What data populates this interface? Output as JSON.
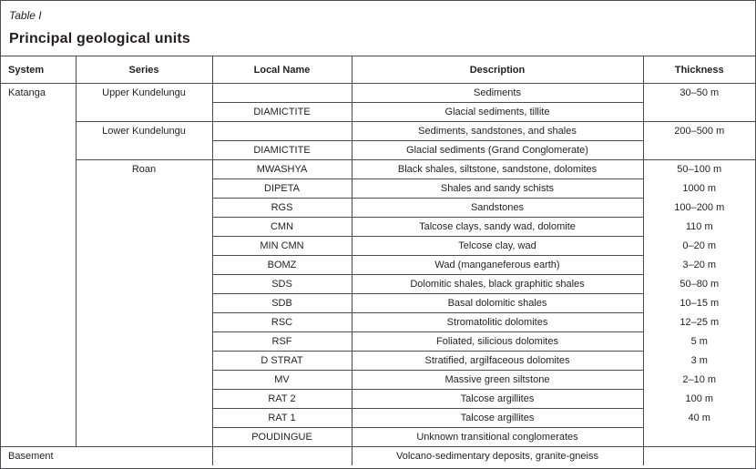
{
  "page": {
    "table_label": "Table I",
    "heading": "Principal geological units"
  },
  "colors": {
    "background": "#ffffff",
    "text": "#231f20",
    "border": "#4d4d4f"
  },
  "table": {
    "columns": [
      "System",
      "Series",
      "Local Name",
      "Description",
      "Thickness"
    ],
    "rows": [
      {
        "cells": [
          {
            "col": "system",
            "text": "Katanga",
            "rowspan": 19,
            "class": "left vtop"
          },
          {
            "col": "series",
            "text": "Upper Kundelungu",
            "rowspan": 2,
            "class": "bl vtop bb"
          },
          {
            "col": "local-name",
            "text": "",
            "class": "bl bb"
          },
          {
            "col": "description",
            "text": "Sediments",
            "class": "bl bb"
          },
          {
            "col": "thickness",
            "text": "30–50 m",
            "rowspan": 2,
            "class": "bl vtop bb"
          }
        ]
      },
      {
        "cells": [
          {
            "col": "local-name",
            "text": "DIAMICTITE",
            "class": "bl bb"
          },
          {
            "col": "description",
            "text": "Glacial sediments, tillite",
            "class": "bl bb"
          }
        ]
      },
      {
        "cells": [
          {
            "col": "series",
            "text": "Lower Kundelungu",
            "rowspan": 2,
            "class": "bl vtop bb"
          },
          {
            "col": "local-name",
            "text": "",
            "class": "bl bb"
          },
          {
            "col": "description",
            "text": "Sediments, sandstones, and shales",
            "class": "bl bb"
          },
          {
            "col": "thickness",
            "text": "200–500 m",
            "rowspan": 2,
            "class": "bl vtop bb"
          }
        ]
      },
      {
        "cells": [
          {
            "col": "local-name",
            "text": "DIAMICTITE",
            "class": "bl bb"
          },
          {
            "col": "description",
            "text": "Glacial sediments (Grand Conglomerate)",
            "class": "bl bb"
          }
        ]
      },
      {
        "cells": [
          {
            "col": "series",
            "text": "Roan",
            "rowspan": 15,
            "class": "bl vtop"
          },
          {
            "col": "local-name",
            "text": "MWASHYA",
            "class": "bl bb"
          },
          {
            "col": "description",
            "text": "Black shales, siltstone, sandstone, dolomites",
            "class": "bl bb"
          },
          {
            "col": "thickness",
            "text": "50–100 m",
            "class": "bl"
          }
        ]
      },
      {
        "cells": [
          {
            "col": "local-name",
            "text": "DIPETA",
            "class": "bl bb"
          },
          {
            "col": "description",
            "text": "Shales and sandy schists",
            "class": "bl bb"
          },
          {
            "col": "thickness",
            "text": "1000 m",
            "class": "bl"
          }
        ]
      },
      {
        "cells": [
          {
            "col": "local-name",
            "text": "RGS",
            "class": "bl bb"
          },
          {
            "col": "description",
            "text": "Sandstones",
            "class": "bl bb"
          },
          {
            "col": "thickness",
            "text": "100–200 m",
            "class": "bl"
          }
        ]
      },
      {
        "cells": [
          {
            "col": "local-name",
            "text": "CMN",
            "class": "bl bb"
          },
          {
            "col": "description",
            "text": "Talcose clays, sandy wad, dolomite",
            "class": "bl bb"
          },
          {
            "col": "thickness",
            "text": "110 m",
            "class": "bl"
          }
        ]
      },
      {
        "cells": [
          {
            "col": "local-name",
            "text": "MIN CMN",
            "class": "bl bb"
          },
          {
            "col": "description",
            "text": "Telcose clay, wad",
            "class": "bl bb"
          },
          {
            "col": "thickness",
            "text": "0–20 m",
            "class": "bl"
          }
        ]
      },
      {
        "cells": [
          {
            "col": "local-name",
            "text": "BOMZ",
            "class": "bl bb"
          },
          {
            "col": "description",
            "text": "Wad (manganeferous earth)",
            "class": "bl bb"
          },
          {
            "col": "thickness",
            "text": "3–20 m",
            "class": "bl"
          }
        ]
      },
      {
        "cells": [
          {
            "col": "local-name",
            "text": "SDS",
            "class": "bl bb"
          },
          {
            "col": "description",
            "text": "Dolomitic shales, black graphitic shales",
            "class": "bl bb"
          },
          {
            "col": "thickness",
            "text": "50–80 m",
            "class": "bl"
          }
        ]
      },
      {
        "cells": [
          {
            "col": "local-name",
            "text": "SDB",
            "class": "bl bb"
          },
          {
            "col": "description",
            "text": "Basal dolomitic shales",
            "class": "bl bb"
          },
          {
            "col": "thickness",
            "text": "10–15 m",
            "class": "bl"
          }
        ]
      },
      {
        "cells": [
          {
            "col": "local-name",
            "text": "RSC",
            "class": "bl bb"
          },
          {
            "col": "description",
            "text": "Stromatolitic dolomites",
            "class": "bl bb"
          },
          {
            "col": "thickness",
            "text": "12–25 m",
            "class": "bl"
          }
        ]
      },
      {
        "cells": [
          {
            "col": "local-name",
            "text": "RSF",
            "class": "bl bb"
          },
          {
            "col": "description",
            "text": "Foliated, silicious dolomites",
            "class": "bl bb"
          },
          {
            "col": "thickness",
            "text": "5 m",
            "class": "bl"
          }
        ]
      },
      {
        "cells": [
          {
            "col": "local-name",
            "text": "D STRAT",
            "class": "bl bb"
          },
          {
            "col": "description",
            "text": "Stratified, argilfaceous dolomites",
            "class": "bl bb"
          },
          {
            "col": "thickness",
            "text": "3 m",
            "class": "bl"
          }
        ]
      },
      {
        "cells": [
          {
            "col": "local-name",
            "text": "MV",
            "class": "bl bb"
          },
          {
            "col": "description",
            "text": "Massive green siltstone",
            "class": "bl bb"
          },
          {
            "col": "thickness",
            "text": "2–10 m",
            "class": "bl"
          }
        ]
      },
      {
        "cells": [
          {
            "col": "local-name",
            "text": "RAT 2",
            "class": "bl bb"
          },
          {
            "col": "description",
            "text": "Talcose argillites",
            "class": "bl bb"
          },
          {
            "col": "thickness",
            "text": "100 m",
            "class": "bl"
          }
        ]
      },
      {
        "cells": [
          {
            "col": "local-name",
            "text": "RAT 1",
            "class": "bl bb"
          },
          {
            "col": "description",
            "text": "Talcose argillites",
            "class": "bl bb"
          },
          {
            "col": "thickness",
            "text": "40 m",
            "class": "bl"
          }
        ]
      },
      {
        "cells": [
          {
            "col": "local-name",
            "text": "POUDINGUE",
            "class": "bl bb"
          },
          {
            "col": "description",
            "text": "Unknown transitional conglomerates",
            "class": "bl bb"
          },
          {
            "col": "thickness",
            "text": "",
            "class": "bl"
          }
        ]
      },
      {
        "cells": [
          {
            "col": "system",
            "text": "Basement",
            "colspan": 2,
            "class": "left bt"
          },
          {
            "col": "local-name",
            "text": "",
            "class": "bl bt"
          },
          {
            "col": "description",
            "text": "Volcano-sedimentary deposits, granite-gneiss",
            "class": "bl bt"
          },
          {
            "col": "thickness",
            "text": "",
            "class": "bl bt"
          }
        ]
      }
    ]
  }
}
